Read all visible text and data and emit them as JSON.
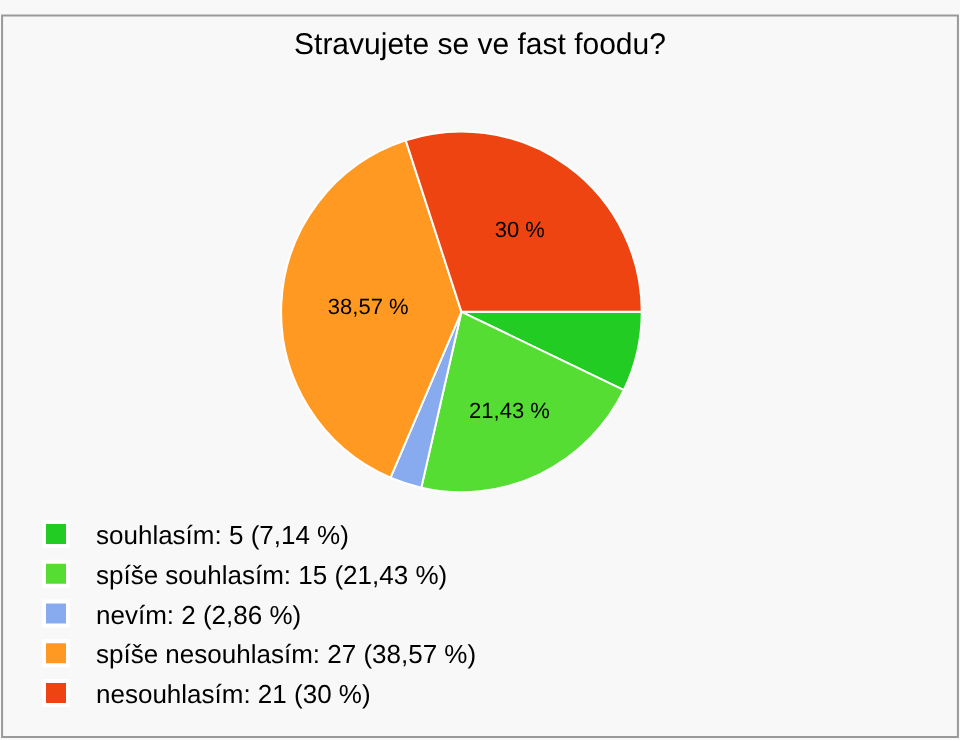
{
  "chart_data": {
    "type": "pie",
    "title": "Stravujete se ve fast foodu?",
    "categories": [
      "souhlasím: 5 (7,14 %)",
      "spíše souhlasím: 15 (21,43 %)",
      "nevím: 2 (2,86 %)",
      "spíše nesouhlasím: 27 (38,57 %)",
      "nesouhlasím: 21 (30 %)"
    ],
    "values": [
      7.14,
      21.43,
      2.86,
      38.57,
      30
    ],
    "value_labels": [
      null,
      "21,43 %",
      null,
      "38,57 %",
      "30 %"
    ],
    "colors": [
      "#22cc22",
      "#55dd33",
      "#88aaee",
      "#ff9922",
      "#ee4411"
    ],
    "legend": "bottom left"
  }
}
